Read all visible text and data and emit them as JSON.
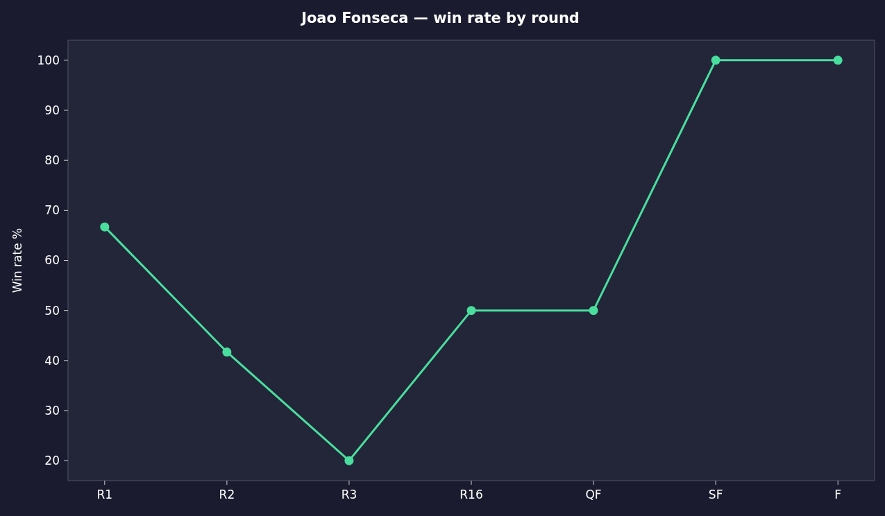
{
  "chart_data": {
    "type": "line",
    "title": "Joao Fonseca — win rate by round",
    "ylabel": "Win rate %",
    "categories": [
      "R1",
      "R2",
      "R3",
      "R16",
      "QF",
      "SF",
      "F"
    ],
    "series": [
      {
        "color": "#4ade9e",
        "values": [
          66.7,
          41.7,
          20,
          50,
          50,
          100,
          100
        ]
      }
    ],
    "ylim": [
      16,
      104
    ],
    "yticks": [
      20,
      30,
      40,
      50,
      60,
      70,
      80,
      90,
      100
    ],
    "grid": false,
    "marker": "circle",
    "line_style": "solid"
  }
}
